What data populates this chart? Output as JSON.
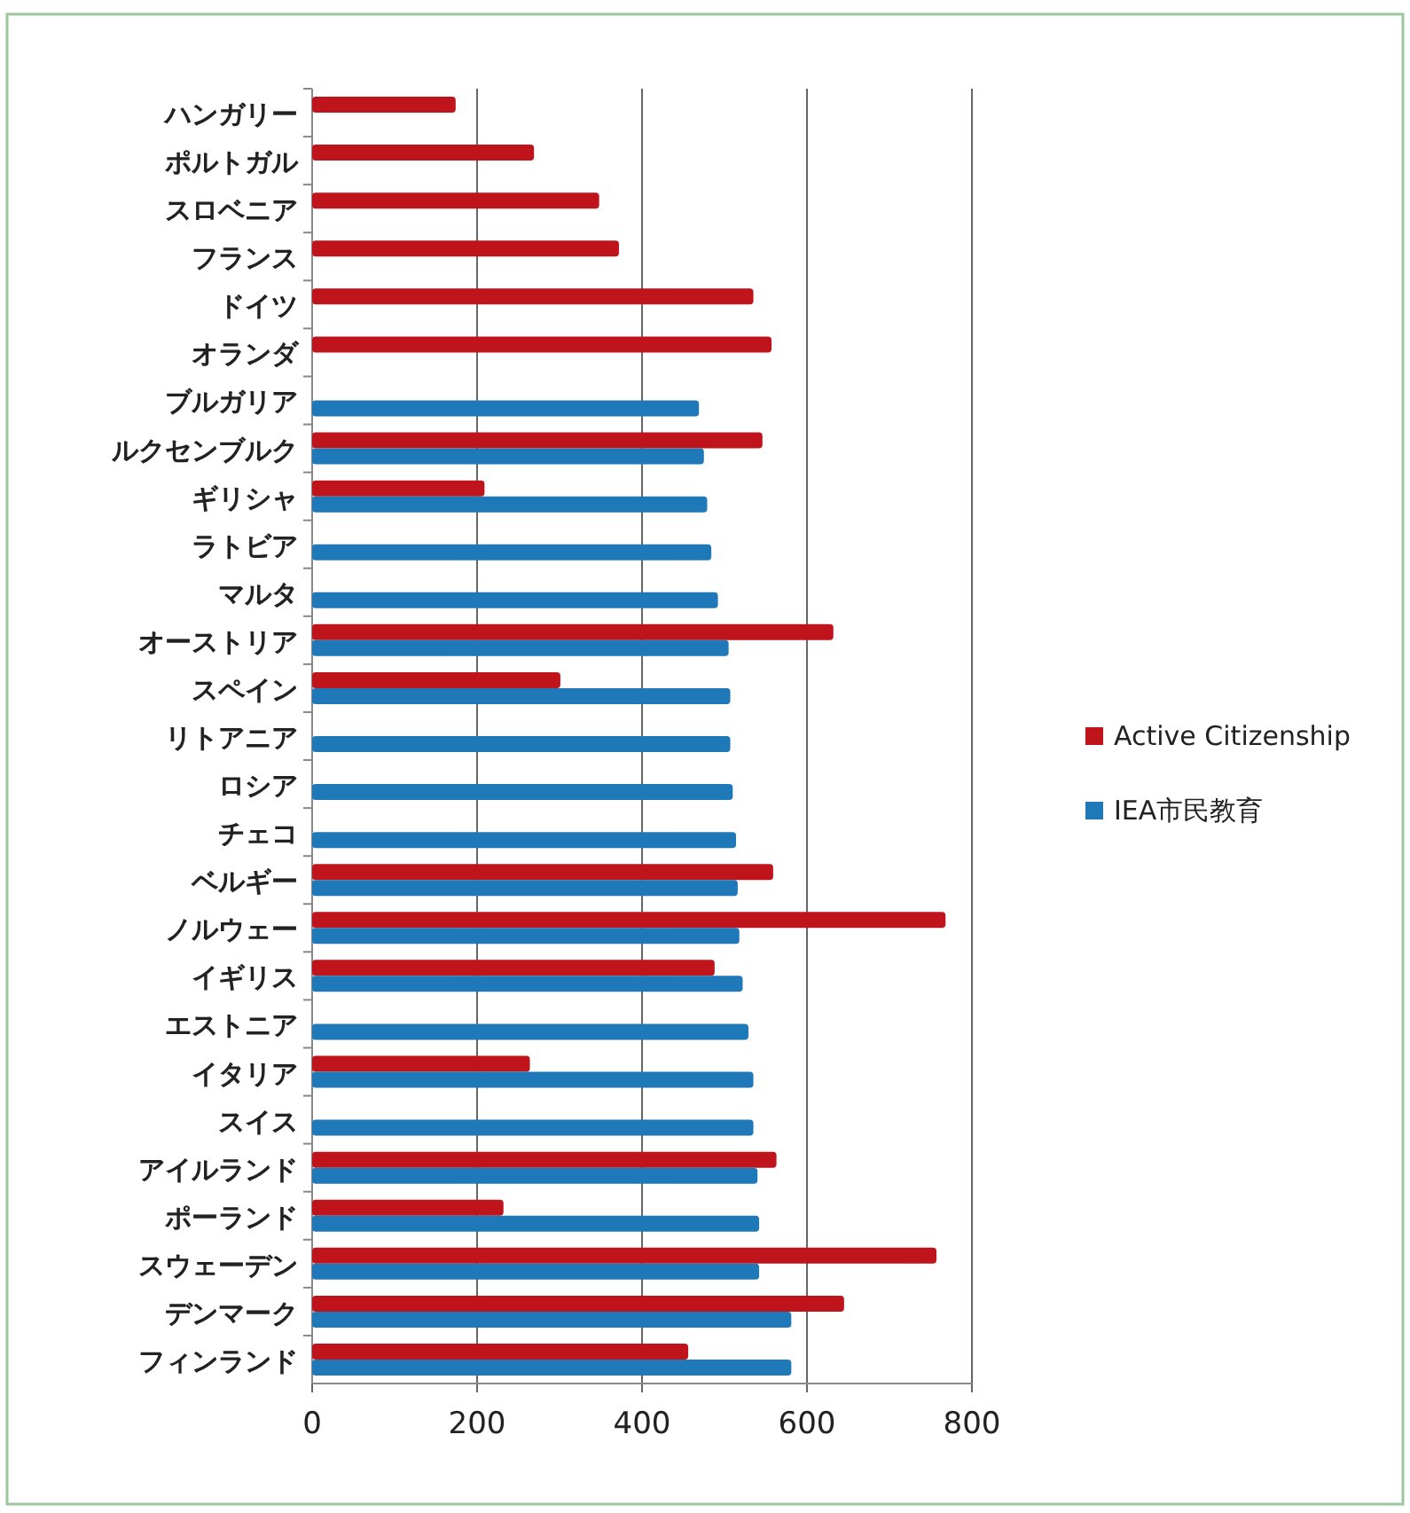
{
  "chart_data": {
    "type": "bar",
    "orientation": "horizontal",
    "categories": [
      "ハンガリー",
      "ポルトガル",
      "スロベニア",
      "フランス",
      "ドイツ",
      "オランダ",
      "ブルガリア",
      "ルクセンブルク",
      "ギリシャ",
      "ラトビア",
      "マルタ",
      "オーストリア",
      "スペイン",
      "リトアニア",
      "ロシア",
      "チェコ",
      "ベルギー",
      "ノルウェー",
      "イギリス",
      "エストニア",
      "イタリア",
      "スイス",
      "アイルランド",
      "ポーランド",
      "スウェーデン",
      "デンマーク",
      "フィンランド"
    ],
    "series": [
      {
        "name": "Active Citizenship",
        "color": "#c0141c",
        "values": [
          174,
          269,
          348,
          372,
          535,
          557,
          null,
          546,
          209,
          null,
          null,
          632,
          301,
          null,
          null,
          null,
          559,
          768,
          488,
          null,
          264,
          null,
          563,
          232,
          757,
          645,
          456
        ]
      },
      {
        "name": "IEA市民教育",
        "color": "#1f78b8",
        "values": [
          null,
          null,
          null,
          null,
          null,
          null,
          469,
          475,
          479,
          484,
          492,
          505,
          507,
          507,
          510,
          514,
          516,
          518,
          522,
          529,
          535,
          535,
          540,
          542,
          542,
          581,
          581
        ]
      }
    ],
    "xlim": [
      0,
      800
    ],
    "xticks": [
      0,
      200,
      400,
      600,
      800
    ],
    "grid": "x",
    "legend": "right"
  }
}
